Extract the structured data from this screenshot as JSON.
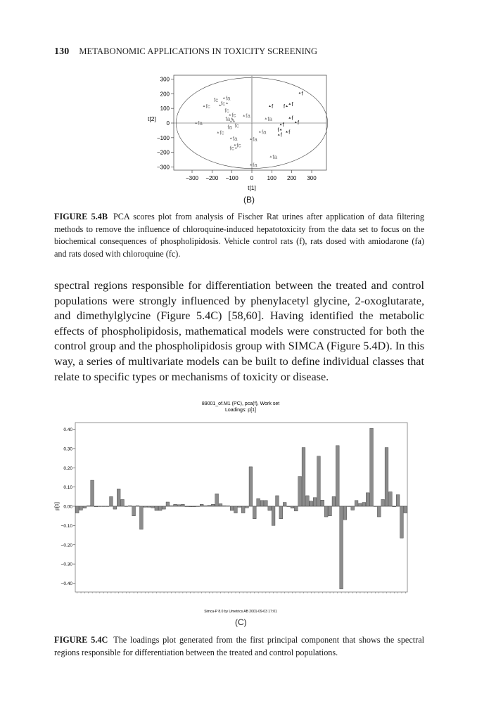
{
  "header": {
    "page_number": "130",
    "running_title": "METABONOMIC APPLICATIONS IN TOXICITY SCREENING"
  },
  "figure_b": {
    "panel_label": "(B)",
    "caption_label": "FIGURE 5.4B",
    "caption_text": "PCA scores plot from analysis of Fischer Rat urines after application of data filtering methods to remove the influence of chloroquine-induced hepatotoxicity from the data set to focus on the biochemical consequences of phospholipidosis. Vehicle control rats (f), rats dosed with amiodarone (fa) and rats dosed with chloroquine (fc)."
  },
  "body_text": "spectral regions responsible for differentiation between the treated and control populations were strongly influenced by phenylacetyl glycine, 2-oxoglutarate, and dimethylglycine (Figure 5.4C) [58,60]. Having identified the metabolic effects of phospholipidosis, mathematical models were constructed for both the control group and the phospholipidosis group with SIMCA (Figure 5.4D). In this way, a series of multivariate models can be built to define individual classes that relate to specific types or mechanisms of toxicity or disease.",
  "figure_c": {
    "panel_label": "(C)",
    "caption_label": "FIGURE 5.4C",
    "caption_text": "The loadings plot generated from the first principal component that shows the spectral regions responsible for differentiation between the treated and control populations.",
    "footer": "Simca-P 8.0 by Umetrics AB 2001-09-03 17:01"
  },
  "chart_data": [
    {
      "type": "scatter",
      "xlabel": "t[1]",
      "ylabel": "t[2]",
      "xlim": [
        -385,
        385
      ],
      "ylim": [
        -320,
        320
      ],
      "xticks": [
        -300,
        -200,
        -100,
        0,
        100,
        200,
        300
      ],
      "yticks": [
        300,
        200,
        100,
        0,
        -100,
        -200,
        -300
      ],
      "confidence_ellipse": {
        "rx": 380,
        "ry": 310
      },
      "points": [
        {
          "x": -140,
          "y": 170,
          "label": "fa"
        },
        {
          "x": -125,
          "y": 135,
          "label": "fc"
        },
        {
          "x": -240,
          "y": 115,
          "label": "fc"
        },
        {
          "x": -160,
          "y": 120,
          "label": "fc"
        },
        {
          "x": -110,
          "y": 55,
          "label": "fc"
        },
        {
          "x": -40,
          "y": 50,
          "label": "fa"
        },
        {
          "x": -100,
          "y": 30,
          "label": "fa"
        },
        {
          "x": -95,
          "y": 22,
          "label": "fc"
        },
        {
          "x": -90,
          "y": 12,
          "label": "fa"
        },
        {
          "x": -105,
          "y": 10,
          "label": "fc"
        },
        {
          "x": -280,
          "y": 0,
          "label": "fa"
        },
        {
          "x": -170,
          "y": -65,
          "label": "fc"
        },
        {
          "x": -105,
          "y": -105,
          "label": "fa"
        },
        {
          "x": -5,
          "y": -110,
          "label": "fa"
        },
        {
          "x": -85,
          "y": -150,
          "label": "fc"
        },
        {
          "x": -80,
          "y": -170,
          "label": "fc"
        },
        {
          "x": -5,
          "y": -285,
          "label": "fa"
        },
        {
          "x": 95,
          "y": -230,
          "label": "fa"
        },
        {
          "x": 40,
          "y": -60,
          "label": "fa"
        },
        {
          "x": 70,
          "y": 30,
          "label": "fa"
        },
        {
          "x": 90,
          "y": 115,
          "label": "f"
        },
        {
          "x": 240,
          "y": 205,
          "label": "f"
        },
        {
          "x": 190,
          "y": 130,
          "label": "f"
        },
        {
          "x": 175,
          "y": 115,
          "label": "f"
        },
        {
          "x": 190,
          "y": 35,
          "label": "f"
        },
        {
          "x": 220,
          "y": 5,
          "label": "f"
        },
        {
          "x": 145,
          "y": -10,
          "label": "f"
        },
        {
          "x": 145,
          "y": -45,
          "label": "f"
        },
        {
          "x": 135,
          "y": -80,
          "label": "f"
        },
        {
          "x": 175,
          "y": -60,
          "label": "f"
        }
      ]
    },
    {
      "type": "bar",
      "title": "89001_of.M1 (PC), pca(f), Work set",
      "subtitle": "Loadings: p[1]",
      "ylabel": "p[1]",
      "ylim": [
        -0.45,
        0.44
      ],
      "yticks": [
        "0.40",
        "0.30",
        "0.20",
        "0.10",
        "0.00",
        "−0.10",
        "−0.20",
        "−0.30",
        "−0.40"
      ],
      "ytick_values": [
        0.4,
        0.3,
        0.2,
        0.1,
        0,
        -0.1,
        -0.2,
        -0.3,
        -0.4
      ],
      "bar_color": "#8c8c8c",
      "values": [
        -0.035,
        -0.02,
        -0.01,
        0.003,
        0.135,
        -0.003,
        0,
        0,
        0,
        0.05,
        -0.015,
        0.09,
        0.035,
        0,
        0.003,
        -0.05,
        0.003,
        -0.12,
        -0.005,
        -0.005,
        -0.008,
        -0.022,
        -0.022,
        -0.015,
        0.022,
        0.003,
        0.01,
        0.008,
        0.01,
        -0.002,
        -0.003,
        -0.003,
        0,
        0.01,
        0.003,
        0.005,
        0.01,
        0.065,
        0.013,
        0.003,
        0.002,
        -0.022,
        -0.035,
        -0.005,
        -0.035,
        -0.008,
        0.205,
        -0.065,
        0.04,
        0.03,
        0.03,
        -0.022,
        -0.1,
        0.055,
        -0.065,
        0.02,
        -0.002,
        -0.01,
        -0.025,
        0.155,
        0.305,
        0.055,
        0.027,
        0.045,
        0.26,
        0.032,
        -0.055,
        -0.05,
        0.05,
        0.315,
        -0.43,
        -0.07,
        0,
        -0.02,
        0.03,
        0.015,
        0.02,
        0.07,
        0.405,
        0,
        -0.055,
        0.035,
        0.305,
        0.075,
        -0.003,
        0.06,
        -0.165,
        -0.035
      ]
    }
  ]
}
